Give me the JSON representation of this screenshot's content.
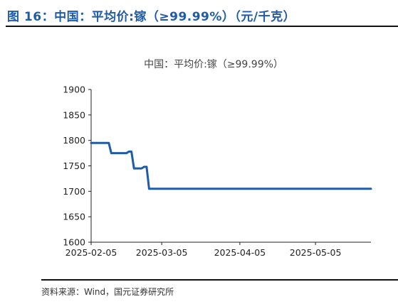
{
  "figure": {
    "title": "图 16：中国：平均价:镓（≥99.99%）（元/千克）",
    "source": "资料来源：Wind，国元证券研究所"
  },
  "chart_data": {
    "type": "line",
    "title": "中国：平均价:镓（≥99.99%）",
    "xlabel": "",
    "ylabel": "",
    "ylim": [
      1600,
      1900
    ],
    "yticks": [
      1600,
      1650,
      1700,
      1750,
      1800,
      1850,
      1900
    ],
    "xlim": [
      "2025-02-05",
      "2025-05-27"
    ],
    "xticks": [
      "2025-02-05",
      "2025-03-05",
      "2025-04-05",
      "2025-05-05"
    ],
    "grid": false,
    "series_color": "#1f5ba8",
    "series": [
      {
        "x": [
          "2025-02-05",
          "2025-02-06",
          "2025-02-07",
          "2025-02-08",
          "2025-02-09",
          "2025-02-10",
          "2025-02-11",
          "2025-02-12",
          "2025-02-13",
          "2025-02-14",
          "2025-02-15",
          "2025-02-16",
          "2025-02-17",
          "2025-02-18",
          "2025-02-19",
          "2025-02-20",
          "2025-02-21",
          "2025-02-22",
          "2025-02-23",
          "2025-02-24",
          "2025-02-25",
          "2025-02-26",
          "2025-02-27",
          "2025-02-28",
          "2025-03-01",
          "2025-03-02",
          "2025-03-03",
          "2025-03-04",
          "2025-03-05",
          "2025-03-06",
          "2025-03-07",
          "2025-03-08",
          "2025-03-09",
          "2025-03-10",
          "2025-03-11",
          "2025-03-12",
          "2025-03-13",
          "2025-03-14",
          "2025-03-15",
          "2025-03-16",
          "2025-03-17",
          "2025-03-18",
          "2025-03-19",
          "2025-03-20",
          "2025-03-21",
          "2025-03-22",
          "2025-03-23",
          "2025-03-24",
          "2025-03-25",
          "2025-03-26",
          "2025-03-27",
          "2025-03-28",
          "2025-03-29",
          "2025-03-30",
          "2025-03-31",
          "2025-04-01",
          "2025-04-02",
          "2025-04-03",
          "2025-04-04",
          "2025-04-05",
          "2025-04-06",
          "2025-04-07",
          "2025-04-08",
          "2025-04-09",
          "2025-04-10",
          "2025-04-15",
          "2025-04-20",
          "2025-04-25",
          "2025-04-30",
          "2025-05-01",
          "2025-05-02",
          "2025-05-03",
          "2025-05-04",
          "2025-05-05",
          "2025-05-06",
          "2025-05-07",
          "2025-05-08",
          "2025-05-09",
          "2025-05-10",
          "2025-05-11",
          "2025-05-12",
          "2025-05-13",
          "2025-05-14",
          "2025-05-15",
          "2025-05-16",
          "2025-05-17",
          "2025-05-18",
          "2025-05-19",
          "2025-05-20",
          "2025-05-21",
          "2025-05-22",
          "2025-05-23",
          "2025-05-24",
          "2025-05-25",
          "2025-05-26",
          "2025-05-27"
        ],
        "values": [
          1795,
          1795,
          1795,
          1795,
          1795,
          1795,
          1795,
          1795,
          1775,
          1775,
          1775,
          1775,
          1775,
          1775,
          1775,
          1778,
          1778,
          1745,
          1745,
          1745,
          1745,
          1748,
          1748,
          1705,
          1705,
          1705,
          1705,
          1705,
          1705,
          1705,
          1705,
          1705,
          1705,
          1705,
          1705,
          1705,
          1705,
          1705,
          1705,
          1705,
          1705,
          1705,
          1705,
          1705,
          1705,
          1705,
          1705,
          1705,
          1705,
          1705,
          1705,
          1705,
          1705,
          1705,
          1705,
          1705,
          1705,
          1705,
          1705,
          1705,
          1705,
          1705,
          1705,
          1705,
          1705,
          1705,
          1705,
          1705,
          1705,
          1705,
          1705,
          1705,
          1705,
          1705,
          1705,
          1705,
          1705,
          1705,
          1705,
          1705,
          1705,
          1705,
          1705,
          1705,
          1705,
          1705,
          1705,
          1705,
          1705,
          1705,
          1705,
          1705,
          1705,
          1705,
          1705,
          1705
        ]
      }
    ]
  }
}
